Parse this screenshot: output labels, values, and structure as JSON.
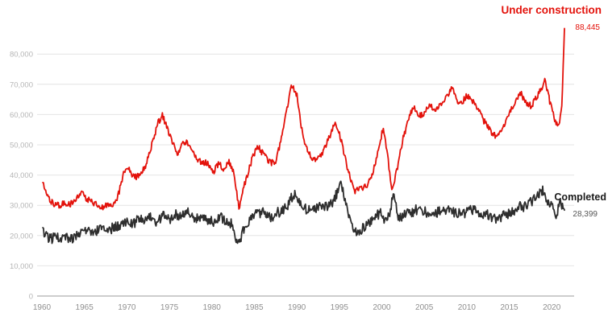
{
  "chart_data": {
    "type": "line",
    "title": "",
    "grid": "horizontal",
    "legend_position": "end-of-line",
    "x_axis": {
      "range": [
        1959.7,
        2022.1
      ],
      "data_start": 1960.1,
      "data_end": 2021.5,
      "ticks": [
        1960,
        1965,
        1970,
        1975,
        1980,
        1985,
        1990,
        1995,
        2000,
        2005,
        2010,
        2015,
        2020
      ]
    },
    "y_axis": {
      "range": [
        0,
        90000
      ],
      "ticks": [
        0,
        10000,
        20000,
        30000,
        40000,
        50000,
        60000,
        70000,
        80000
      ],
      "tick_format": "comma-thousands"
    },
    "series": [
      {
        "name": "Under construction",
        "color": "#e3120b",
        "end_value": 88445,
        "end_label": "88,445",
        "jitter": 1050,
        "anchors": [
          [
            1960.1,
            38000
          ],
          [
            1960.6,
            33200
          ],
          [
            1961.2,
            30800
          ],
          [
            1962.0,
            29800
          ],
          [
            1962.6,
            30900
          ],
          [
            1963.3,
            30200
          ],
          [
            1964.0,
            32500
          ],
          [
            1964.7,
            34200
          ],
          [
            1965.4,
            31800
          ],
          [
            1966.2,
            30600
          ],
          [
            1967.0,
            29400
          ],
          [
            1967.7,
            30000
          ],
          [
            1968.4,
            29700
          ],
          [
            1969.0,
            33500
          ],
          [
            1969.6,
            40800
          ],
          [
            1970.2,
            42200
          ],
          [
            1970.8,
            39200
          ],
          [
            1971.5,
            39800
          ],
          [
            1972.2,
            43000
          ],
          [
            1973.0,
            50500
          ],
          [
            1973.7,
            57500
          ],
          [
            1974.2,
            59800
          ],
          [
            1974.8,
            55000
          ],
          [
            1975.5,
            50000
          ],
          [
            1976.0,
            47200
          ],
          [
            1976.6,
            50800
          ],
          [
            1977.3,
            50400
          ],
          [
            1978.0,
            46000
          ],
          [
            1978.8,
            43800
          ],
          [
            1979.5,
            44200
          ],
          [
            1980.2,
            41000
          ],
          [
            1980.8,
            43800
          ],
          [
            1981.4,
            42200
          ],
          [
            1982.0,
            44800
          ],
          [
            1982.6,
            40500
          ],
          [
            1983.2,
            29200
          ],
          [
            1984.0,
            38500
          ],
          [
            1984.8,
            46000
          ],
          [
            1985.4,
            49800
          ],
          [
            1986.0,
            47000
          ],
          [
            1986.7,
            44500
          ],
          [
            1987.4,
            43800
          ],
          [
            1988.0,
            49500
          ],
          [
            1988.7,
            60000
          ],
          [
            1989.4,
            70000
          ],
          [
            1990.0,
            66500
          ],
          [
            1990.7,
            53000
          ],
          [
            1991.4,
            47000
          ],
          [
            1992.2,
            45000
          ],
          [
            1993.0,
            47500
          ],
          [
            1993.8,
            52500
          ],
          [
            1994.6,
            57500
          ],
          [
            1995.3,
            50500
          ],
          [
            1996.0,
            42000
          ],
          [
            1996.8,
            34500
          ],
          [
            1997.5,
            35500
          ],
          [
            1998.3,
            36500
          ],
          [
            1999.0,
            41000
          ],
          [
            1999.7,
            50000
          ],
          [
            2000.2,
            56000
          ],
          [
            2000.7,
            46000
          ],
          [
            2001.2,
            35200
          ],
          [
            2001.8,
            42000
          ],
          [
            2002.5,
            52000
          ],
          [
            2003.2,
            59000
          ],
          [
            2003.8,
            62500
          ],
          [
            2004.4,
            59500
          ],
          [
            2005.0,
            60500
          ],
          [
            2005.6,
            63500
          ],
          [
            2006.2,
            61000
          ],
          [
            2007.0,
            63500
          ],
          [
            2007.6,
            65500
          ],
          [
            2008.2,
            69200
          ],
          [
            2008.8,
            65000
          ],
          [
            2009.4,
            63500
          ],
          [
            2010.0,
            66500
          ],
          [
            2010.6,
            64500
          ],
          [
            2011.2,
            62500
          ],
          [
            2012.0,
            58000
          ],
          [
            2012.8,
            54500
          ],
          [
            2013.5,
            52500
          ],
          [
            2014.2,
            55500
          ],
          [
            2015.0,
            60500
          ],
          [
            2015.7,
            64000
          ],
          [
            2016.3,
            67300
          ],
          [
            2017.0,
            64000
          ],
          [
            2017.6,
            62800
          ],
          [
            2018.2,
            65500
          ],
          [
            2018.9,
            69500
          ],
          [
            2019.2,
            71200
          ],
          [
            2019.8,
            64000
          ],
          [
            2020.4,
            57500
          ],
          [
            2020.9,
            56300
          ],
          [
            2021.2,
            63500
          ],
          [
            2021.5,
            88445
          ]
        ]
      },
      {
        "name": "Completed",
        "color": "#2e2e2e",
        "end_value": 28399,
        "end_label": "28,399",
        "jitter": 1750,
        "anchors": [
          [
            1960.1,
            21800
          ],
          [
            1960.5,
            20000
          ],
          [
            1961.0,
            18800
          ],
          [
            1961.6,
            19600
          ],
          [
            1962.2,
            18600
          ],
          [
            1963.0,
            19400
          ],
          [
            1963.6,
            18900
          ],
          [
            1964.3,
            21200
          ],
          [
            1965.0,
            21600
          ],
          [
            1965.7,
            20900
          ],
          [
            1966.4,
            21300
          ],
          [
            1967.0,
            22100
          ],
          [
            1967.8,
            21600
          ],
          [
            1968.5,
            23000
          ],
          [
            1969.2,
            22600
          ],
          [
            1970.0,
            24200
          ],
          [
            1970.7,
            23600
          ],
          [
            1971.4,
            25400
          ],
          [
            1972.0,
            24400
          ],
          [
            1972.8,
            25800
          ],
          [
            1973.5,
            24800
          ],
          [
            1974.2,
            26600
          ],
          [
            1975.0,
            25200
          ],
          [
            1975.8,
            27000
          ],
          [
            1976.5,
            26200
          ],
          [
            1977.2,
            27600
          ],
          [
            1978.0,
            25800
          ],
          [
            1978.7,
            26600
          ],
          [
            1979.4,
            25000
          ],
          [
            1980.2,
            24400
          ],
          [
            1981.0,
            26200
          ],
          [
            1981.7,
            24600
          ],
          [
            1982.4,
            24000
          ],
          [
            1983.1,
            16300
          ],
          [
            1984.0,
            23800
          ],
          [
            1984.8,
            26400
          ],
          [
            1985.5,
            27400
          ],
          [
            1986.2,
            28000
          ],
          [
            1987.0,
            26200
          ],
          [
            1987.7,
            27600
          ],
          [
            1988.4,
            28200
          ],
          [
            1989.0,
            30400
          ],
          [
            1989.7,
            34000
          ],
          [
            1990.4,
            30000
          ],
          [
            1991.0,
            28800
          ],
          [
            1991.8,
            28200
          ],
          [
            1992.5,
            29000
          ],
          [
            1993.2,
            29600
          ],
          [
            1994.0,
            30400
          ],
          [
            1994.7,
            33600
          ],
          [
            1995.2,
            36800
          ],
          [
            1995.8,
            31000
          ],
          [
            1996.4,
            23500
          ],
          [
            1997.0,
            20600
          ],
          [
            1997.7,
            22400
          ],
          [
            1998.4,
            23400
          ],
          [
            1999.0,
            25800
          ],
          [
            1999.8,
            27600
          ],
          [
            2000.4,
            25000
          ],
          [
            2001.0,
            28000
          ],
          [
            2001.4,
            34000
          ],
          [
            2002.0,
            25200
          ],
          [
            2002.8,
            26800
          ],
          [
            2003.5,
            27600
          ],
          [
            2004.2,
            28800
          ],
          [
            2005.0,
            28000
          ],
          [
            2005.8,
            27200
          ],
          [
            2006.5,
            27800
          ],
          [
            2007.2,
            28200
          ],
          [
            2008.0,
            28800
          ],
          [
            2008.8,
            27400
          ],
          [
            2009.5,
            26800
          ],
          [
            2010.2,
            29000
          ],
          [
            2011.0,
            28200
          ],
          [
            2011.8,
            27400
          ],
          [
            2012.5,
            26800
          ],
          [
            2013.2,
            25200
          ],
          [
            2014.0,
            26200
          ],
          [
            2014.8,
            27000
          ],
          [
            2015.5,
            27800
          ],
          [
            2016.2,
            29600
          ],
          [
            2017.0,
            29400
          ],
          [
            2017.8,
            31600
          ],
          [
            2018.5,
            33800
          ],
          [
            2019.0,
            35200
          ],
          [
            2019.5,
            29800
          ],
          [
            2020.0,
            31500
          ],
          [
            2020.5,
            27200
          ],
          [
            2021.0,
            30500
          ],
          [
            2021.5,
            28399
          ]
        ]
      }
    ]
  },
  "colors": {
    "red": "#e3120b",
    "dark_line": "#2e2e2e",
    "gridline": "#e4e4e4",
    "zero_axis": "#9b9b9b",
    "y_tick_text": "#b5b5b5",
    "x_tick_text": "#8f8f8f",
    "completed_value_text": "#555555"
  }
}
